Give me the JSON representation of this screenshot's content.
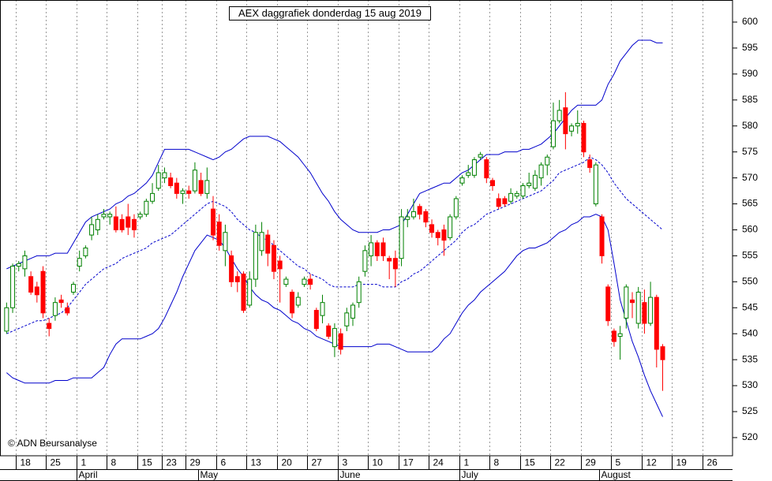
{
  "chart_data": {
    "type": "candlestick",
    "title": "AEX daggrafiek donderdag 15 aug 2019",
    "annotation": "© ADN Beursanalyse",
    "y_axis_side": "right",
    "vertical_grid": true,
    "up_color": "#008000",
    "down_color": "#ff0000",
    "ylim": [
      516.5,
      604.25
    ],
    "yticks": [
      520,
      525,
      530,
      535,
      540,
      545,
      550,
      555,
      560,
      565,
      570,
      575,
      580,
      585,
      590,
      595,
      600
    ],
    "categories": [
      null,
      null,
      "18",
      null,
      null,
      null,
      null,
      "25",
      null,
      null,
      null,
      null,
      "1",
      null,
      null,
      null,
      null,
      "8",
      null,
      null,
      null,
      null,
      "15",
      null,
      null,
      null,
      "23",
      null,
      null,
      null,
      "29",
      null,
      null,
      null,
      null,
      "6",
      null,
      null,
      null,
      null,
      "13",
      null,
      null,
      null,
      null,
      "20",
      null,
      null,
      null,
      null,
      "27",
      null,
      null,
      null,
      null,
      "3",
      null,
      null,
      null,
      null,
      "10",
      null,
      null,
      null,
      null,
      "17",
      null,
      null,
      null,
      null,
      "24",
      null,
      null,
      null,
      null,
      "1",
      null,
      null,
      null,
      null,
      "8",
      null,
      null,
      null,
      null,
      "15",
      null,
      null,
      null,
      null,
      "22",
      null,
      null,
      null,
      null,
      "29",
      null,
      null,
      null,
      null,
      "5",
      null,
      null,
      null,
      null,
      "12",
      null,
      null,
      null,
      null,
      "19",
      null,
      null,
      null,
      null,
      "26",
      null,
      null,
      null,
      null
    ],
    "month_labels": [
      null,
      null,
      null,
      null,
      null,
      null,
      null,
      null,
      null,
      null,
      null,
      null,
      "April",
      null,
      null,
      null,
      null,
      null,
      null,
      null,
      null,
      null,
      null,
      null,
      null,
      null,
      null,
      null,
      null,
      null,
      null,
      null,
      "May",
      null,
      null,
      null,
      null,
      null,
      null,
      null,
      null,
      null,
      null,
      null,
      null,
      null,
      null,
      null,
      null,
      null,
      null,
      null,
      null,
      null,
      null,
      "June",
      null,
      null,
      null,
      null,
      null,
      null,
      null,
      null,
      null,
      null,
      null,
      null,
      null,
      null,
      null,
      null,
      null,
      null,
      null,
      "July",
      null,
      null,
      null,
      null,
      null,
      null,
      null,
      null,
      null,
      null,
      null,
      null,
      null,
      null,
      null,
      null,
      null,
      null,
      null,
      null,
      null,
      null,
      "August",
      null,
      null,
      null,
      null,
      null,
      null,
      null,
      null,
      null,
      null,
      null,
      null,
      null,
      null,
      null,
      null,
      null,
      null,
      null,
      null,
      null
    ],
    "open": [
      540.5,
      545,
      553,
      552.5,
      551,
      549,
      552,
      542,
      543.5,
      546.5,
      545,
      548,
      553,
      555,
      559,
      560,
      562.5,
      562.5,
      562.5,
      562,
      562.5,
      562,
      562.5,
      563,
      565.5,
      568,
      570,
      570,
      569,
      567,
      567.5,
      567.5,
      569.5,
      567,
      564,
      561.5,
      556,
      555,
      551,
      551.5,
      545.5,
      550.5,
      556,
      559,
      557,
      554,
      549.5,
      548,
      545.5,
      549.5,
      550.5,
      544.5,
      543.5,
      541.5,
      537.5,
      540,
      541.5,
      543,
      546,
      552,
      555,
      557.5,
      557.5,
      554.5,
      554.5,
      554.5,
      562,
      562.5,
      564.5,
      563.5,
      561,
      559.5,
      560,
      558.5,
      562.5,
      569,
      570.5,
      570.5,
      574,
      573.5,
      569.5,
      566,
      566,
      565.5,
      566.5,
      566.5,
      568.5,
      568,
      570,
      572.5,
      576,
      581,
      583.5,
      579,
      580,
      580.5,
      573.5,
      565,
      562.5,
      549,
      540.5,
      539.5,
      543,
      546.5,
      542,
      546,
      542,
      547,
      537.5,
      null,
      null,
      null,
      null,
      null,
      null,
      null,
      null,
      null,
      null,
      null
    ],
    "high": [
      546,
      553.5,
      554,
      556,
      552,
      550,
      553,
      543,
      547,
      547.5,
      546,
      550,
      556,
      557,
      562.5,
      563,
      564,
      563.5,
      564.5,
      563,
      565,
      563,
      563.5,
      566,
      569,
      572.5,
      572,
      571,
      570,
      568,
      568.5,
      573,
      571,
      572,
      566.5,
      563,
      561,
      556,
      552,
      552,
      552,
      561,
      561.5,
      560,
      558,
      555,
      551,
      548.5,
      548,
      551,
      551.5,
      545,
      547.5,
      542,
      542,
      541,
      545,
      546,
      551,
      557,
      559,
      558,
      558.5,
      555,
      556,
      564,
      564,
      566,
      565,
      564,
      562,
      560,
      561,
      563,
      566.5,
      570.5,
      572.5,
      574,
      575,
      574,
      570,
      567,
      566.5,
      568,
      567.5,
      569,
      571,
      571.5,
      573,
      574.5,
      584.5,
      585,
      586.5,
      580.5,
      583,
      581,
      574.5,
      573,
      563,
      549.5,
      541,
      541.5,
      549.5,
      548,
      549,
      548.5,
      550,
      547.5,
      538,
      null,
      null,
      null,
      null,
      null,
      null,
      null,
      null,
      null,
      null,
      null
    ],
    "low": [
      540,
      544,
      552,
      551,
      547.5,
      546,
      543,
      539.5,
      542.5,
      545,
      543.5,
      547.5,
      552,
      554.5,
      558,
      559,
      562,
      561,
      559.5,
      559.5,
      559,
      558.5,
      562,
      562.5,
      565,
      567.5,
      569,
      568,
      566,
      565,
      566,
      567,
      566.5,
      566,
      558,
      556,
      553,
      549,
      548,
      544,
      545,
      549,
      555,
      553,
      550.5,
      546,
      549,
      543,
      545,
      549,
      548.5,
      540.5,
      542,
      539,
      535.5,
      536,
      540.5,
      541.5,
      545,
      551,
      553,
      554,
      554,
      550.5,
      549,
      553,
      560.5,
      562,
      562,
      560.5,
      558.5,
      557,
      555,
      558,
      562,
      568.5,
      570,
      570,
      573.5,
      569,
      567.5,
      564,
      564.5,
      565,
      566,
      566,
      568,
      567.5,
      568.5,
      570.5,
      575.5,
      580.5,
      575.5,
      578,
      578.5,
      574,
      571,
      564.5,
      553.5,
      541.5,
      537.5,
      535,
      541,
      543,
      541,
      540,
      541.5,
      533.5,
      529,
      null,
      null,
      null,
      null,
      null,
      null,
      null,
      null,
      null,
      null,
      null
    ],
    "close": [
      545,
      553,
      553.5,
      555,
      548,
      547.5,
      544,
      541,
      546,
      546,
      544,
      549.5,
      554.5,
      556.5,
      561,
      562,
      563,
      563,
      560,
      560,
      560.5,
      560,
      563,
      565.5,
      567,
      571,
      571,
      568.5,
      567,
      567.5,
      567,
      571.5,
      567,
      569.5,
      559,
      557,
      559.5,
      550,
      550,
      544.5,
      550.5,
      559.5,
      559.5,
      555.5,
      552,
      552.5,
      550.5,
      544,
      547,
      550.5,
      549.5,
      541,
      546,
      539.5,
      541,
      537,
      544,
      545.5,
      550,
      556,
      557.5,
      555,
      555,
      554,
      552.5,
      562.5,
      562.5,
      563.5,
      563,
      561.5,
      559.5,
      558.5,
      558,
      562.5,
      566,
      570,
      571,
      573.5,
      574.5,
      570,
      568.5,
      564.5,
      565,
      567,
      567,
      568.5,
      569,
      570.5,
      572.5,
      574,
      581,
      583,
      578.5,
      580,
      580.5,
      575,
      572,
      572.5,
      555,
      542.5,
      538.5,
      540,
      549,
      546,
      548,
      542,
      547,
      537,
      535,
      null,
      null,
      null,
      null,
      null,
      null,
      null,
      null,
      null,
      null,
      null
    ],
    "bands": [
      {
        "color": "#0000cc",
        "dashed": false,
        "values": [
          552.5,
          553,
          553.5,
          554,
          554.5,
          555,
          555,
          555,
          555.5,
          555.5,
          555.5,
          557.5,
          559.5,
          561.5,
          562.5,
          563,
          563.5,
          564,
          565,
          565.5,
          566.5,
          567,
          568,
          569,
          570.5,
          573,
          575.5,
          575.5,
          575.5,
          575.5,
          575.5,
          575,
          574.5,
          574,
          573.5,
          574,
          575,
          575.5,
          576.5,
          577.5,
          578,
          578,
          578,
          578,
          577.5,
          577,
          576,
          575,
          574,
          572.5,
          571,
          569,
          567,
          565.5,
          563.5,
          562,
          561,
          560,
          559.5,
          559.5,
          559.5,
          559.5,
          560,
          560,
          560.5,
          561,
          563,
          565,
          567,
          567.5,
          568,
          568.5,
          569,
          569,
          570,
          571,
          571.5,
          572.5,
          573.5,
          574.5,
          574.5,
          574.5,
          575,
          575,
          575,
          575.5,
          575.5,
          576,
          576.5,
          577.5,
          578.5,
          580,
          581.5,
          583,
          584,
          584,
          584,
          584,
          585,
          588,
          590,
          592.5,
          594,
          595.5,
          596.5,
          596.5,
          596.5,
          596,
          596,
          null,
          null,
          null,
          null,
          null,
          null,
          null,
          null,
          null,
          null,
          null
        ]
      },
      {
        "color": "#0000cc",
        "dashed": true,
        "values": [
          540,
          540.5,
          541,
          541.5,
          542,
          542.5,
          542.5,
          543,
          543.5,
          544,
          545,
          546.5,
          548,
          549.5,
          550.5,
          551.5,
          552.5,
          553,
          553.5,
          554.5,
          555,
          555.5,
          556,
          556.5,
          557.5,
          558,
          558.5,
          559,
          560,
          561,
          562,
          563,
          564,
          565,
          565.5,
          565,
          564.5,
          563.5,
          562,
          561,
          560,
          559.5,
          558.5,
          558,
          557,
          556,
          555,
          554,
          553,
          552.5,
          551.5,
          551,
          550.5,
          549.5,
          549,
          549,
          549,
          549,
          549.5,
          549.5,
          549.5,
          549.5,
          549,
          549,
          549,
          550,
          550.5,
          551.5,
          552,
          553,
          554,
          555,
          556,
          557,
          558,
          559.5,
          560.5,
          561,
          562,
          563,
          563.5,
          564,
          564.5,
          565,
          565.5,
          566,
          566.5,
          567,
          567.5,
          568.5,
          569.5,
          571,
          571.5,
          572,
          572.5,
          573,
          574,
          573.5,
          572.5,
          571,
          569,
          567.5,
          566,
          565,
          564,
          563,
          562,
          561,
          560,
          null,
          null,
          null,
          null,
          null,
          null,
          null,
          null,
          null,
          null,
          null
        ]
      },
      {
        "color": "#0000cc",
        "dashed": false,
        "values": [
          532.5,
          531.5,
          531,
          530.5,
          530.5,
          530.5,
          530.5,
          530.5,
          531,
          531,
          531,
          531.5,
          531.5,
          531.5,
          531.5,
          532.5,
          533.5,
          536,
          538,
          539,
          539,
          539,
          539,
          539.5,
          540,
          541,
          543,
          545.5,
          548,
          551,
          553.5,
          556,
          557.5,
          559,
          558.5,
          558,
          556.5,
          554.5,
          552.5,
          551,
          549,
          547.5,
          546.5,
          546,
          545,
          544.5,
          543.5,
          542.5,
          542,
          541,
          540.5,
          539.5,
          539,
          538.5,
          538,
          537.5,
          537.5,
          537.5,
          537.5,
          537.5,
          537.5,
          538,
          538,
          538,
          537.5,
          537,
          536.5,
          536.5,
          536.5,
          536.5,
          536.5,
          537.5,
          539,
          540,
          542,
          544,
          545.5,
          546.5,
          548,
          549,
          550,
          551,
          552,
          553.5,
          555,
          556,
          556.5,
          556.5,
          557,
          557.5,
          558.5,
          559.5,
          560,
          561,
          561.5,
          562.5,
          562.5,
          563,
          562.5,
          560,
          553.5,
          546.5,
          542.5,
          538.5,
          535.5,
          532,
          529,
          526.5,
          524,
          null,
          null,
          null,
          null,
          null,
          null,
          null,
          null,
          null,
          null,
          null
        ]
      }
    ]
  }
}
